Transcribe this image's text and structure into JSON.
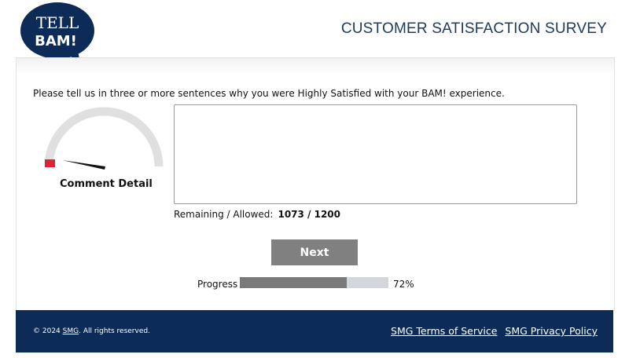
{
  "logo": {
    "line1": "TELL",
    "line2": "BAM!"
  },
  "header": {
    "title": "CUSTOMER SATISFACTION SURVEY"
  },
  "question": "Please tell us in three or more sentences why you were Highly Satisfied with your BAM! experience.",
  "gauge": {
    "label": "Comment Detail",
    "level": 0.05,
    "color_track": "#e0e0e0",
    "color_indicator": "#e0203c"
  },
  "comment": {
    "value": "",
    "remaining_label": "Remaining / Allowed:",
    "remaining": "1073 / 1200"
  },
  "next_label": "Next",
  "progress": {
    "label": "Progress",
    "value": 72,
    "text": "72%"
  },
  "footer": {
    "copyright_prefix": "© 2024",
    "copyright_link": "SMG",
    "copyright_suffix": ". All rights reserved.",
    "terms": "SMG Terms of Service",
    "privacy": "SMG Privacy Policy"
  }
}
